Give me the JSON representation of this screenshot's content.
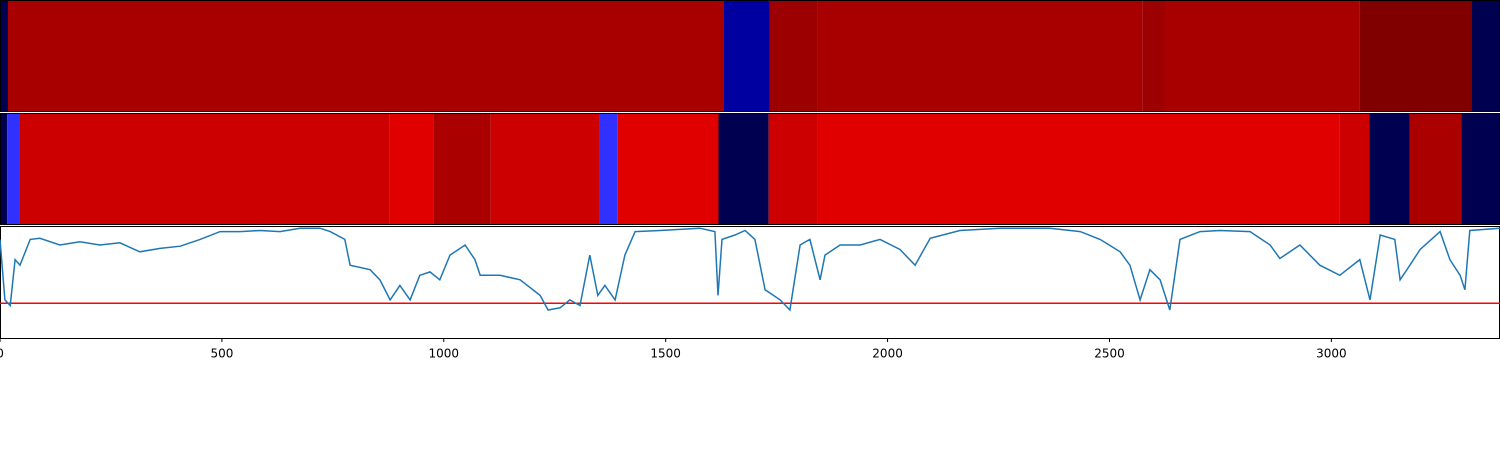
{
  "chart_data": {
    "type": "line",
    "xlim": [
      0,
      3380
    ],
    "ylim": [
      0,
      1
    ],
    "xticks": [
      0,
      500,
      1000,
      1500,
      2000,
      2500,
      3000
    ],
    "strips": [
      {
        "segments": [
          {
            "start": 0,
            "end": 18,
            "color": "#000050"
          },
          {
            "start": 18,
            "end": 1630,
            "color": "#a80000"
          },
          {
            "start": 1630,
            "end": 1734,
            "color": "#0000a0"
          },
          {
            "start": 1734,
            "end": 1842,
            "color": "#9c0000"
          },
          {
            "start": 1842,
            "end": 2574,
            "color": "#a80000"
          },
          {
            "start": 2574,
            "end": 2624,
            "color": "#9c0000"
          },
          {
            "start": 2624,
            "end": 3063,
            "color": "#a80000"
          },
          {
            "start": 3063,
            "end": 3315,
            "color": "#800000"
          },
          {
            "start": 3315,
            "end": 3380,
            "color": "#000050"
          }
        ]
      },
      {
        "segments": [
          {
            "start": 0,
            "end": 16,
            "color": "#000050"
          },
          {
            "start": 16,
            "end": 45,
            "color": "#3030ff"
          },
          {
            "start": 45,
            "end": 878,
            "color": "#cc0000"
          },
          {
            "start": 878,
            "end": 977,
            "color": "#e00000"
          },
          {
            "start": 977,
            "end": 1106,
            "color": "#aa0000"
          },
          {
            "start": 1106,
            "end": 1351,
            "color": "#cc0000"
          },
          {
            "start": 1351,
            "end": 1392,
            "color": "#3030ff"
          },
          {
            "start": 1392,
            "end": 1619,
            "color": "#e00000"
          },
          {
            "start": 1619,
            "end": 1732,
            "color": "#000050"
          },
          {
            "start": 1732,
            "end": 1842,
            "color": "#cc0000"
          },
          {
            "start": 1842,
            "end": 3018,
            "color": "#e00000"
          },
          {
            "start": 3018,
            "end": 3086,
            "color": "#cc0000"
          },
          {
            "start": 3086,
            "end": 3176,
            "color": "#000050"
          },
          {
            "start": 3176,
            "end": 3293,
            "color": "#aa0000"
          },
          {
            "start": 3293,
            "end": 3380,
            "color": "#000050"
          }
        ]
      }
    ],
    "threshold": 0.31,
    "threshold_color": "#ff0000",
    "color": "#1f77b4",
    "x": [
      0,
      11,
      23,
      34,
      45,
      68,
      90,
      135,
      180,
      225,
      270,
      315,
      361,
      406,
      451,
      496,
      541,
      586,
      631,
      676,
      721,
      744,
      777,
      789,
      834,
      856,
      879,
      901,
      924,
      946,
      969,
      991,
      1014,
      1048,
      1070,
      1082,
      1127,
      1172,
      1217,
      1235,
      1262,
      1284,
      1307,
      1329,
      1347,
      1363,
      1386,
      1408,
      1431,
      1487,
      1577,
      1611,
      1618,
      1627,
      1656,
      1679,
      1701,
      1724,
      1758,
      1780,
      1803,
      1825,
      1848,
      1859,
      1893,
      1938,
      1983,
      2028,
      2062,
      2096,
      2163,
      2253,
      2366,
      2434,
      2479,
      2524,
      2546,
      2569,
      2591,
      2614,
      2636,
      2659,
      2704,
      2749,
      2817,
      2862,
      2884,
      2929,
      2974,
      3019,
      3064,
      3087,
      3110,
      3143,
      3155,
      3177,
      3200,
      3245,
      3267,
      3290,
      3301,
      3312,
      3380
    ],
    "values": [
      0.88,
      0.34,
      0.29,
      0.7,
      0.65,
      0.88,
      0.89,
      0.83,
      0.86,
      0.83,
      0.85,
      0.77,
      0.8,
      0.82,
      0.88,
      0.95,
      0.95,
      0.96,
      0.95,
      0.98,
      0.98,
      0.95,
      0.88,
      0.65,
      0.61,
      0.52,
      0.34,
      0.47,
      0.34,
      0.56,
      0.59,
      0.52,
      0.74,
      0.83,
      0.7,
      0.56,
      0.56,
      0.52,
      0.38,
      0.25,
      0.27,
      0.34,
      0.29,
      0.74,
      0.38,
      0.47,
      0.34,
      0.74,
      0.95,
      0.96,
      0.98,
      0.95,
      0.38,
      0.88,
      0.92,
      0.96,
      0.88,
      0.43,
      0.34,
      0.25,
      0.83,
      0.88,
      0.52,
      0.74,
      0.83,
      0.83,
      0.88,
      0.79,
      0.65,
      0.89,
      0.96,
      0.98,
      0.98,
      0.95,
      0.88,
      0.77,
      0.65,
      0.34,
      0.61,
      0.52,
      0.25,
      0.88,
      0.95,
      0.96,
      0.95,
      0.83,
      0.71,
      0.83,
      0.65,
      0.56,
      0.7,
      0.34,
      0.92,
      0.88,
      0.52,
      0.65,
      0.79,
      0.95,
      0.7,
      0.56,
      0.43,
      0.96,
      0.98
    ]
  }
}
